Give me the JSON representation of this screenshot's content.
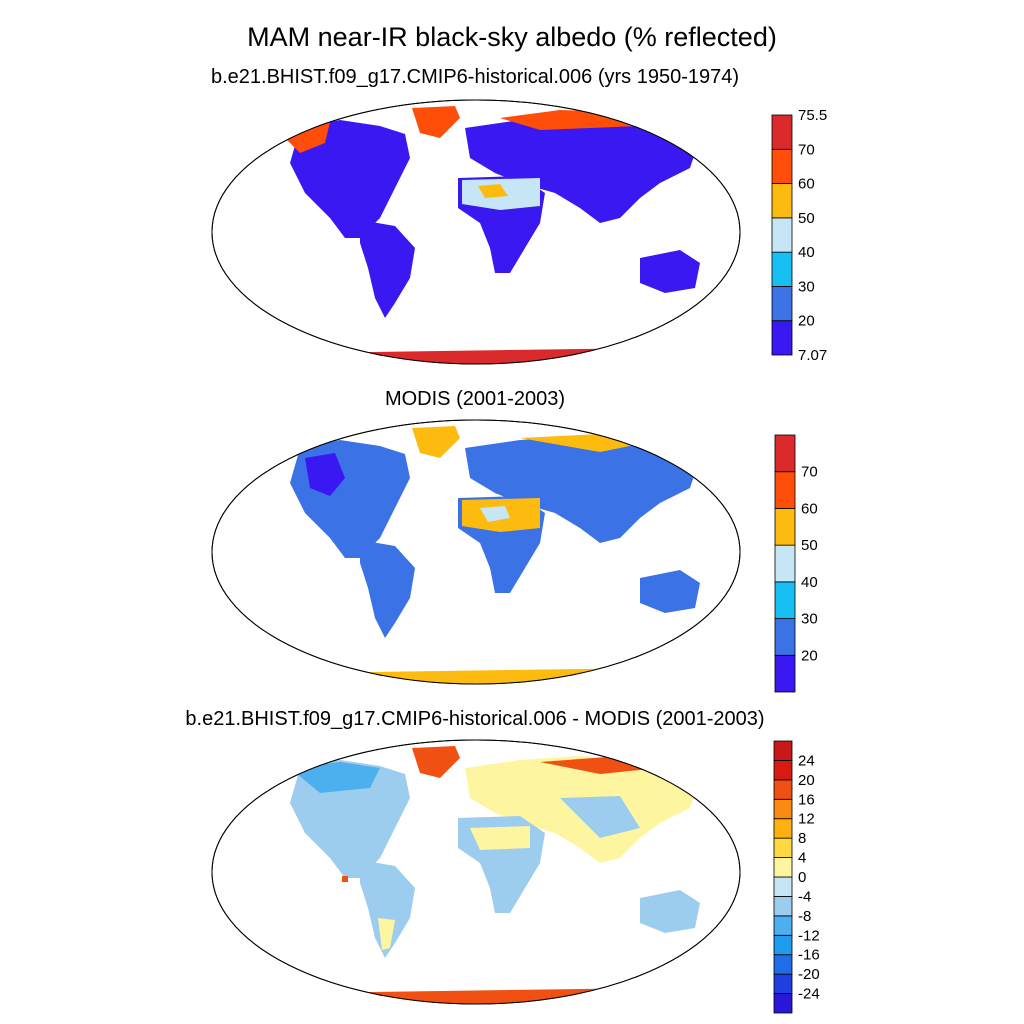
{
  "title": "MAM near-IR black-sky albedo (% reflected)",
  "panels": [
    {
      "subtitle": "b.e21.BHIST.f09_g17.CMIP6-historical.006 (yrs 1950-1974)",
      "colorbar": {
        "colors": [
          "#3a18f2",
          "#3b72e6",
          "#17bff2",
          "#c7e6f5",
          "#fdbb10",
          "#ff4d0a",
          "#db2a2c"
        ],
        "labels": [
          "7.07",
          "20",
          "30",
          "40",
          "50",
          "60",
          "70",
          "75.5"
        ],
        "label_mode": "edges"
      }
    },
    {
      "subtitle": "MODIS (2001-2003)",
      "colorbar": {
        "colors": [
          "#3a18f2",
          "#3b72e6",
          "#17bff2",
          "#c7e6f5",
          "#fdbb10",
          "#ff4d0a",
          "#db2a2c"
        ],
        "labels": [
          "",
          "20",
          "30",
          "40",
          "50",
          "60",
          "70",
          ""
        ],
        "label_mode": "edges"
      }
    },
    {
      "subtitle": "b.e21.BHIST.f09_g17.CMIP6-historical.006 - MODIS (2001-2003)",
      "colorbar": {
        "colors": [
          "#2a16d8",
          "#1f3fe0",
          "#1f6ee8",
          "#1f9cf0",
          "#4db0ee",
          "#9dcdee",
          "#c7e6f5",
          "#fef5a0",
          "#fdd840",
          "#fdb010",
          "#fb8a10",
          "#f05012",
          "#d81a10",
          "#c81818"
        ],
        "labels": [
          "",
          "-24",
          "-20",
          "-16",
          "-12",
          "-8",
          "-4",
          "0",
          "4",
          "8",
          "12",
          "16",
          "20",
          "24",
          ""
        ],
        "label_mode": "edges"
      }
    }
  ]
}
